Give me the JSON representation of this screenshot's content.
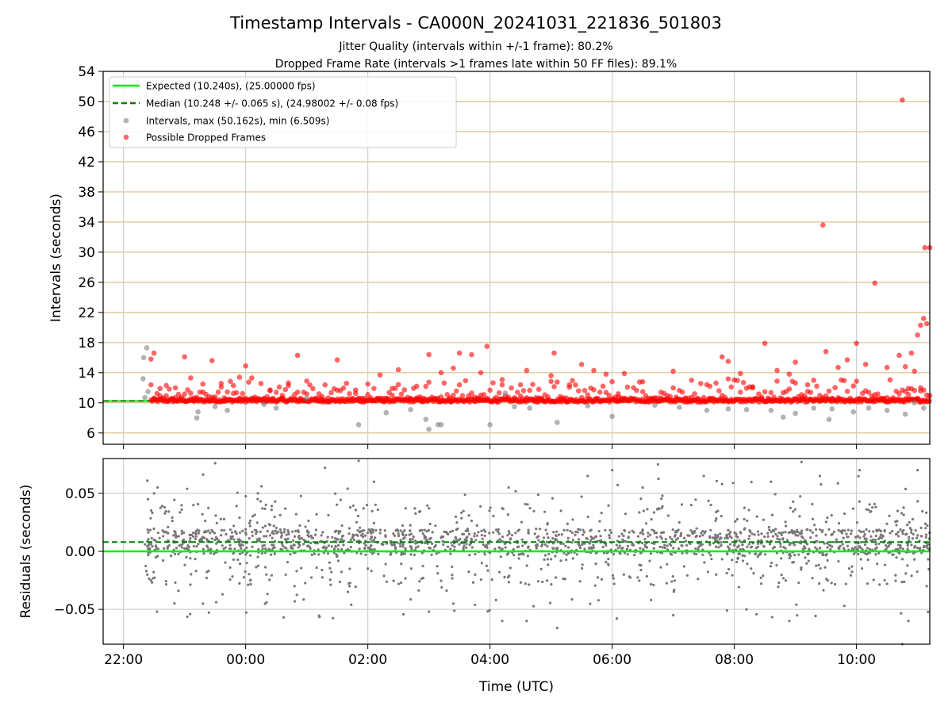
{
  "figure": {
    "title": "Timestamp Intervals - CA000N_20241031_221836_501803",
    "subtitle_jitter": "Jitter Quality (intervals within +/-1 frame): 80.2%",
    "subtitle_dropped": "Dropped Frame Rate (intervals >1 frames late within 50 FF files): 89.1%"
  },
  "chart_data": [
    {
      "type": "scatter",
      "panel": "top",
      "ylabel": "Intervals (seconds)",
      "xlabel": "",
      "y_ticks": [
        6,
        10,
        14,
        18,
        22,
        26,
        30,
        34,
        38,
        42,
        46,
        50,
        54
      ],
      "ylim": [
        4.5,
        54
      ],
      "xlim_hours": [
        21.6667,
        35.2
      ],
      "x_ticks": [
        "22:00",
        "00:00",
        "02:00",
        "04:00",
        "06:00",
        "08:00",
        "10:00"
      ],
      "grid": "horizontal tan lines, vertical grey lines",
      "legend_position": "top-left",
      "legend": [
        {
          "label": "Expected (10.240s), (25.00000 fps)",
          "style": "solid-line",
          "color": "#00ee00"
        },
        {
          "label": "Median (10.248 +/- 0.065 s), (24.98002 +/- 0.08 fps)",
          "style": "dashed-line",
          "color": "#008000"
        },
        {
          "label": "Intervals, max (50.162s), min (6.509s)",
          "style": "marker",
          "color": "#808080"
        },
        {
          "label": "Possible Dropped Frames",
          "style": "marker",
          "color": "#ff0000"
        }
      ],
      "expected_interval": 10.24,
      "median_interval": 10.248,
      "series": [
        {
          "name": "Intervals, max (50.162s), min (6.509s)",
          "color": "#808080",
          "points": [
            [
              22.35,
              10.7
            ],
            [
              22.38,
              17.3
            ],
            [
              22.32,
              13.2
            ],
            [
              22.4,
              11.5
            ],
            [
              22.33,
              16.0
            ],
            [
              23.2,
              8.0
            ],
            [
              23.22,
              8.8
            ],
            [
              23.5,
              9.5
            ],
            [
              23.7,
              9.0
            ],
            [
              24.3,
              9.8
            ],
            [
              24.5,
              9.3
            ],
            [
              25.0,
              10.6
            ],
            [
              25.85,
              7.1
            ],
            [
              26.3,
              8.7
            ],
            [
              26.7,
              9.1
            ],
            [
              26.95,
              7.8
            ],
            [
              27.0,
              6.5
            ],
            [
              27.15,
              7.1
            ],
            [
              27.2,
              7.1
            ],
            [
              28.0,
              7.1
            ],
            [
              28.25,
              11.3
            ],
            [
              28.4,
              9.5
            ],
            [
              28.65,
              9.3
            ],
            [
              29.1,
              7.4
            ],
            [
              29.6,
              9.6
            ],
            [
              30.0,
              8.2
            ],
            [
              30.7,
              9.7
            ],
            [
              31.1,
              9.4
            ],
            [
              31.55,
              9.0
            ],
            [
              31.9,
              9.2
            ],
            [
              32.2,
              9.1
            ],
            [
              32.6,
              9.0
            ],
            [
              32.8,
              8.1
            ],
            [
              33.0,
              8.6
            ],
            [
              33.3,
              9.3
            ],
            [
              33.55,
              7.8
            ],
            [
              33.6,
              9.2
            ],
            [
              33.95,
              8.8
            ],
            [
              34.2,
              9.3
            ],
            [
              34.5,
              9.0
            ],
            [
              34.8,
              8.5
            ],
            [
              34.95,
              10.0
            ],
            [
              35.1,
              9.3
            ]
          ]
        },
        {
          "name": "Possible Dropped Frames",
          "color": "#ff0000",
          "points": [
            [
              22.45,
              15.8
            ],
            [
              22.5,
              16.6
            ],
            [
              22.6,
              11.9
            ],
            [
              22.7,
              12.3
            ],
            [
              22.85,
              12.0
            ],
            [
              23.0,
              16.1
            ],
            [
              23.1,
              13.3
            ],
            [
              23.3,
              12.5
            ],
            [
              23.45,
              15.6
            ],
            [
              23.6,
              12.1
            ],
            [
              23.8,
              12.3
            ],
            [
              23.9,
              13.4
            ],
            [
              24.0,
              14.9
            ],
            [
              24.1,
              13.3
            ],
            [
              24.4,
              11.6
            ],
            [
              24.6,
              11.0
            ],
            [
              24.7,
              12.3
            ],
            [
              24.85,
              16.3
            ],
            [
              25.0,
              12.9
            ],
            [
              25.2,
              11.2
            ],
            [
              25.5,
              15.7
            ],
            [
              25.8,
              11.7
            ],
            [
              26.0,
              12.5
            ],
            [
              26.2,
              13.7
            ],
            [
              26.4,
              11.9
            ],
            [
              26.5,
              14.4
            ],
            [
              26.8,
              12.2
            ],
            [
              27.0,
              16.4
            ],
            [
              27.2,
              14.0
            ],
            [
              27.4,
              14.6
            ],
            [
              27.5,
              16.6
            ],
            [
              27.7,
              16.4
            ],
            [
              27.85,
              14.0
            ],
            [
              27.95,
              17.5
            ],
            [
              28.2,
              12.4
            ],
            [
              28.5,
              12.4
            ],
            [
              28.6,
              14.3
            ],
            [
              28.8,
              11.8
            ],
            [
              29.0,
              13.6
            ],
            [
              29.05,
              16.6
            ],
            [
              29.3,
              12.4
            ],
            [
              29.5,
              15.1
            ],
            [
              29.7,
              14.3
            ],
            [
              29.9,
              13.8
            ],
            [
              30.1,
              11.2
            ],
            [
              30.2,
              13.9
            ],
            [
              30.5,
              12.8
            ],
            [
              30.8,
              11.4
            ],
            [
              31.0,
              14.2
            ],
            [
              31.3,
              13.0
            ],
            [
              31.6,
              12.2
            ],
            [
              31.8,
              16.1
            ],
            [
              31.9,
              15.5
            ],
            [
              32.1,
              13.9
            ],
            [
              32.3,
              12.0
            ],
            [
              32.5,
              17.9
            ],
            [
              32.7,
              14.3
            ],
            [
              32.9,
              13.8
            ],
            [
              33.0,
              15.4
            ],
            [
              33.2,
              12.4
            ],
            [
              33.45,
              33.6
            ],
            [
              33.5,
              16.8
            ],
            [
              33.7,
              14.7
            ],
            [
              33.85,
              15.7
            ],
            [
              34.0,
              17.9
            ],
            [
              34.15,
              15.1
            ],
            [
              34.3,
              25.9
            ],
            [
              34.5,
              14.7
            ],
            [
              34.7,
              16.3
            ],
            [
              34.9,
              16.6
            ],
            [
              35.05,
              12.0
            ],
            [
              35.05,
              20.3
            ],
            [
              35.1,
              21.2
            ],
            [
              35.15,
              20.5
            ],
            [
              35.2,
              30.6
            ],
            [
              35.12,
              30.6
            ],
            [
              35.0,
              19.0
            ],
            [
              34.75,
              50.2
            ],
            [
              34.8,
              14.8
            ],
            [
              34.85,
              11.9
            ],
            [
              34.95,
              14.2
            ]
          ]
        }
      ]
    },
    {
      "type": "scatter",
      "panel": "bottom",
      "ylabel": "Residuals (seconds)",
      "xlabel": "Time (UTC)",
      "y_ticks": [
        0.05,
        0.0,
        -0.05
      ],
      "y_tick_labels": [
        "0.05",
        "0.00",
        "−0.05"
      ],
      "ylim": [
        -0.08,
        0.08
      ],
      "x_ticks": [
        "22:00",
        "00:00",
        "02:00",
        "04:00",
        "06:00",
        "08:00",
        "10:00"
      ],
      "expected_residual": 0.0,
      "median_residual": 0.008,
      "series": [
        {
          "name": "Residuals",
          "color": "#777777",
          "points": [
            [
              22.4,
              0.045
            ],
            [
              22.5,
              0.05
            ],
            [
              22.45,
              -0.025
            ],
            [
              22.55,
              -0.052
            ],
            [
              22.9,
              -0.034
            ],
            [
              23.5,
              0.076
            ],
            [
              23.3,
              -0.045
            ],
            [
              24.2,
              0.05
            ],
            [
              24.8,
              -0.03
            ],
            [
              25.3,
              0.072
            ],
            [
              25.85,
              0.078
            ],
            [
              26.1,
              0.06
            ],
            [
              25.7,
              -0.03
            ],
            [
              27.4,
              -0.045
            ],
            [
              27.0,
              -0.052
            ],
            [
              28.2,
              -0.06
            ],
            [
              28.6,
              -0.06
            ],
            [
              29.1,
              -0.066
            ],
            [
              29.6,
              0.065
            ],
            [
              30.0,
              0.07
            ],
            [
              30.5,
              0.055
            ],
            [
              30.75,
              0.075
            ],
            [
              31.0,
              -0.055
            ],
            [
              31.5,
              0.065
            ],
            [
              31.8,
              0.058
            ],
            [
              32.2,
              -0.05
            ],
            [
              32.6,
              0.06
            ],
            [
              32.9,
              -0.06
            ],
            [
              33.4,
              0.065
            ],
            [
              33.8,
              -0.047
            ],
            [
              34.05,
              0.07
            ],
            [
              34.5,
              -0.028
            ],
            [
              34.75,
              -0.08
            ],
            [
              34.85,
              -0.06
            ],
            [
              35.0,
              0.07
            ],
            [
              35.15,
              -0.03
            ],
            [
              33.1,
              0.077
            ]
          ]
        }
      ]
    }
  ]
}
